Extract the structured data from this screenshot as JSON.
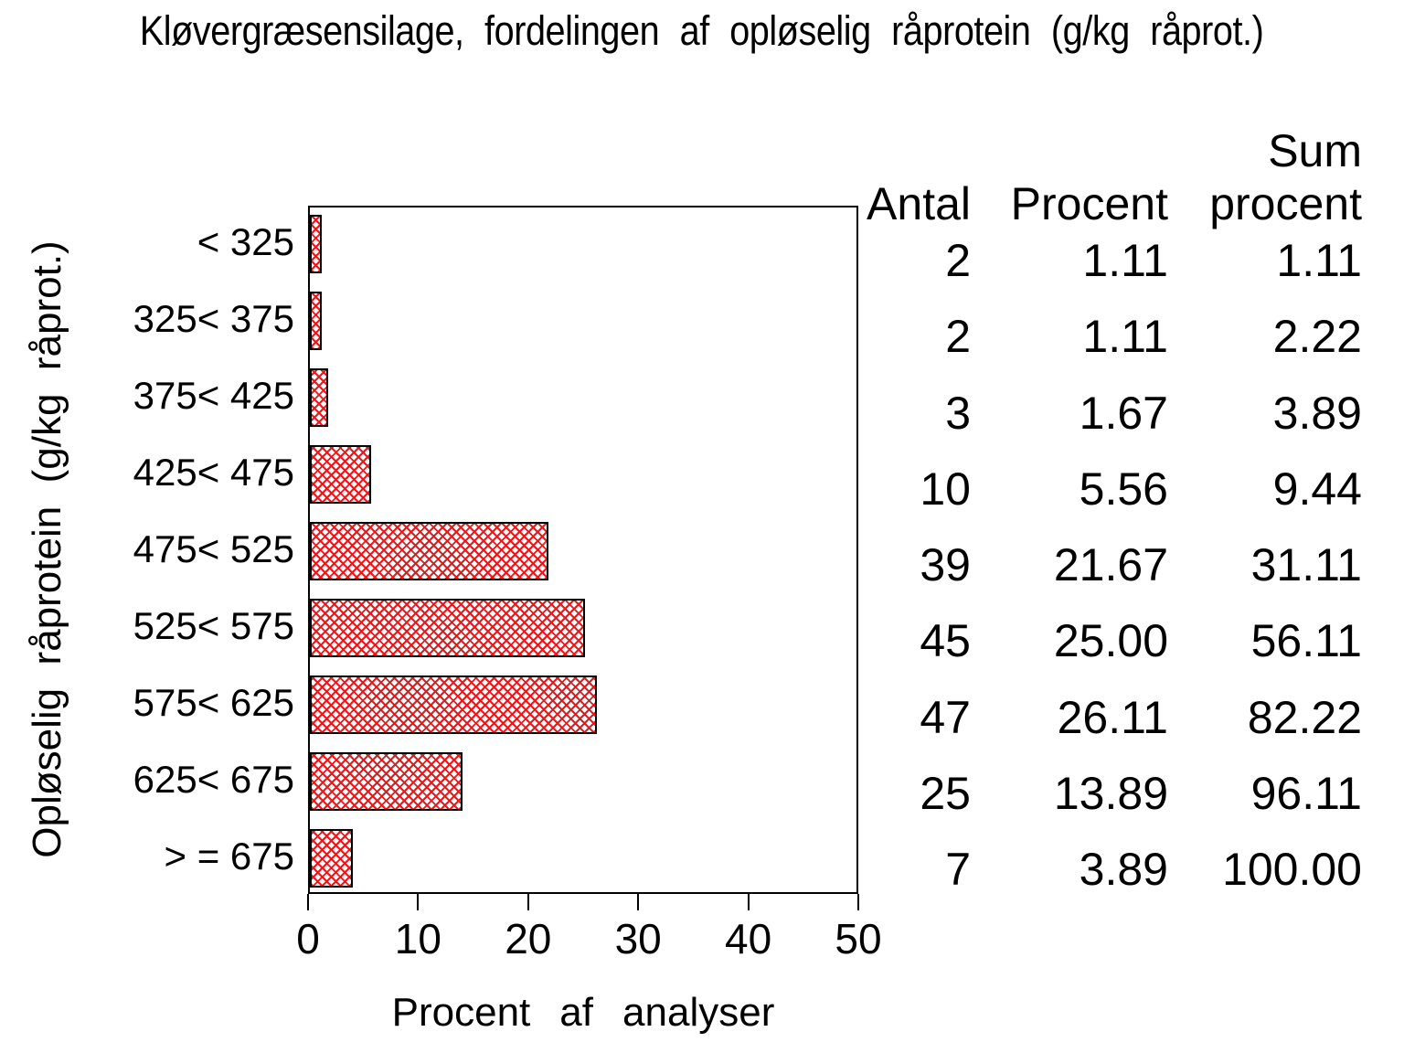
{
  "title": "Kløvergræsensilage, fordelingen af opløselig råprotein (g/kg råprot.)",
  "chart_data": {
    "type": "bar",
    "orientation": "horizontal",
    "title": "Kløvergræsensilage, fordelingen af opløselig råprotein (g/kg råprot.)",
    "xlabel": "Procent af analyser",
    "ylabel": "Opløselig råprotein (g/kg råprot.)",
    "xlim": [
      0,
      50
    ],
    "xticks": [
      "0",
      "10",
      "20",
      "30",
      "40",
      "50"
    ],
    "grid": false,
    "legend": "none",
    "bar_style": "red diagonal crosshatch with black outline",
    "bar_hatch_color": "#e8191d",
    "bar_outline_color": "#000000",
    "categories": [
      "< 325",
      "325< 375",
      "375< 425",
      "425< 475",
      "475< 525",
      "525< 575",
      "575< 625",
      "625< 675",
      "> = 675"
    ],
    "values": [
      1.11,
      1.11,
      1.67,
      5.56,
      21.67,
      25.0,
      26.11,
      13.89,
      3.89
    ]
  },
  "table": {
    "headers": {
      "antal": "Antal",
      "procent": "Procent",
      "sum_line1": "Sum",
      "sum_line2": "procent"
    },
    "rows": [
      {
        "antal": "2",
        "procent": "1.11",
        "sum": "1.11"
      },
      {
        "antal": "2",
        "procent": "1.11",
        "sum": "2.22"
      },
      {
        "antal": "3",
        "procent": "1.67",
        "sum": "3.89"
      },
      {
        "antal": "10",
        "procent": "5.56",
        "sum": "9.44"
      },
      {
        "antal": "39",
        "procent": "21.67",
        "sum": "31.11"
      },
      {
        "antal": "45",
        "procent": "25.00",
        "sum": "56.11"
      },
      {
        "antal": "47",
        "procent": "26.11",
        "sum": "82.22"
      },
      {
        "antal": "25",
        "procent": "13.89",
        "sum": "96.11"
      },
      {
        "antal": "7",
        "procent": "3.89",
        "sum": "100.00"
      }
    ]
  }
}
